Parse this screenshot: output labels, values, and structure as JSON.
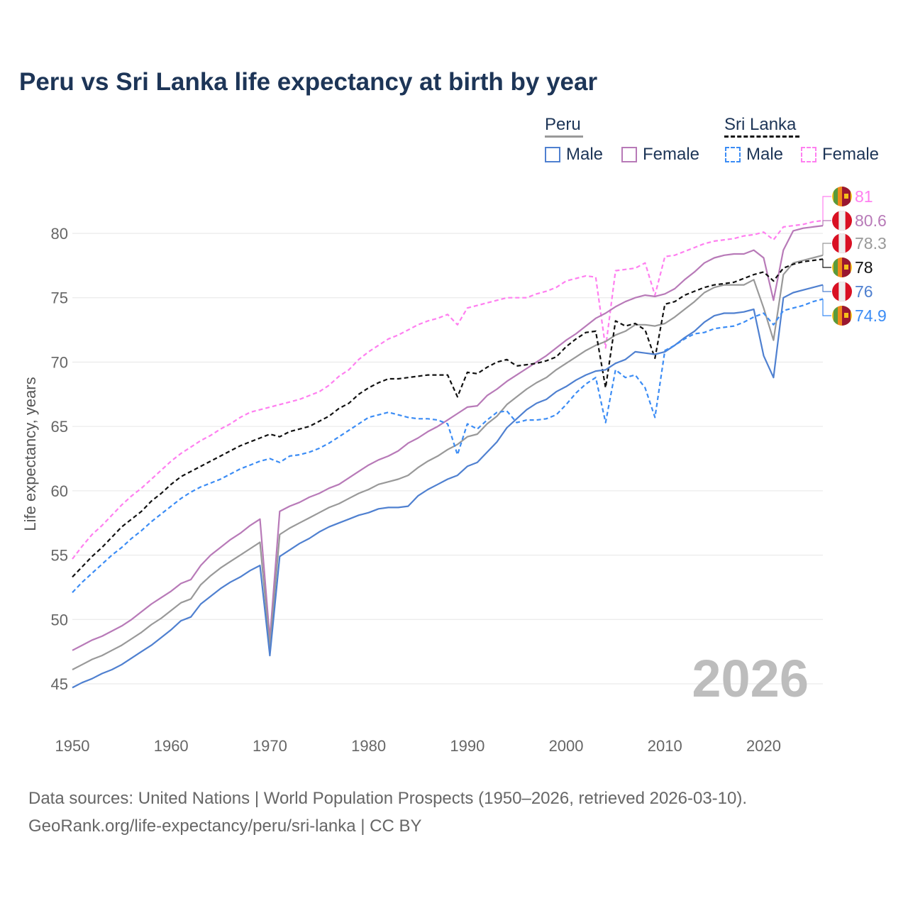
{
  "title": "Peru vs Sri Lanka life expectancy at birth by year",
  "watermark_year": "2026",
  "source_line1": "Data sources: United Nations | World Population Prospects (1950–2026, retrieved 2026-03-10).",
  "source_line2": "GeoRank.org/life-expectancy/peru/sri-lanka | CC BY",
  "legend": {
    "peru": "Peru",
    "sri_lanka": "Sri Lanka",
    "male": "Male",
    "female": "Female"
  },
  "chart_data": {
    "type": "line",
    "title": "Peru vs Sri Lanka life expectancy at birth by year",
    "xlabel": "",
    "ylabel": "Life expectancy, years",
    "xlim": [
      1950,
      2026
    ],
    "ylim": [
      43.5,
      83
    ],
    "xticks": [
      "1950",
      "1960",
      "1970",
      "1980",
      "1990",
      "2000",
      "2010",
      "2020"
    ],
    "yticks": [
      "45",
      "50",
      "55",
      "60",
      "65",
      "70",
      "75",
      "80"
    ],
    "x_start": 1950,
    "series": [
      {
        "name": "Sri Lanka Female",
        "color": "#ff7ff0",
        "dash": true,
        "end_label": "81",
        "flag": "sri-lanka",
        "values": [
          54.7,
          55.7,
          56.6,
          57.3,
          58.1,
          58.9,
          59.6,
          60.2,
          60.9,
          61.6,
          62.3,
          62.9,
          63.4,
          63.9,
          64.3,
          64.8,
          65.2,
          65.7,
          66.1,
          66.3,
          66.5,
          66.7,
          66.9,
          67.1,
          67.4,
          67.7,
          68.2,
          68.9,
          69.4,
          70.2,
          70.8,
          71.3,
          71.8,
          72.1,
          72.5,
          72.9,
          73.2,
          73.4,
          73.7,
          72.9,
          74.2,
          74.4,
          74.6,
          74.8,
          75.0,
          75.0,
          75.0,
          75.3,
          75.5,
          75.8,
          76.3,
          76.5,
          76.7,
          76.6,
          71.1,
          77.1,
          77.2,
          77.3,
          77.7,
          75.2,
          78.2,
          78.3,
          78.6,
          78.9,
          79.2,
          79.4,
          79.5,
          79.6,
          79.8,
          79.9,
          80.1,
          79.5,
          80.5,
          80.6,
          80.7,
          80.9,
          81.0
        ]
      },
      {
        "name": "Peru Female",
        "color": "#b87ab8",
        "dash": false,
        "end_label": "80.6",
        "flag": "peru",
        "values": [
          47.6,
          48.0,
          48.4,
          48.7,
          49.1,
          49.5,
          50.0,
          50.6,
          51.2,
          51.7,
          52.2,
          52.8,
          53.1,
          54.2,
          55.0,
          55.6,
          56.2,
          56.7,
          57.3,
          57.8,
          48.5,
          58.4,
          58.8,
          59.1,
          59.5,
          59.8,
          60.2,
          60.5,
          61.0,
          61.5,
          62.0,
          62.4,
          62.7,
          63.1,
          63.7,
          64.1,
          64.6,
          65.0,
          65.5,
          66.0,
          66.5,
          66.6,
          67.4,
          67.9,
          68.5,
          69.0,
          69.5,
          70.0,
          70.5,
          71.1,
          71.7,
          72.2,
          72.8,
          73.4,
          73.8,
          74.3,
          74.7,
          75.0,
          75.2,
          75.1,
          75.3,
          75.7,
          76.4,
          77.0,
          77.7,
          78.1,
          78.3,
          78.4,
          78.4,
          78.7,
          78.1,
          74.8,
          78.7,
          80.2,
          80.4,
          80.5,
          80.6
        ]
      },
      {
        "name": "Peru",
        "color": "#999999",
        "dash": false,
        "end_label": "78.3",
        "flag": "peru",
        "values": [
          46.1,
          46.5,
          46.9,
          47.2,
          47.6,
          48.0,
          48.5,
          49.0,
          49.6,
          50.1,
          50.7,
          51.3,
          51.6,
          52.7,
          53.4,
          54.0,
          54.5,
          55.0,
          55.5,
          56.0,
          47.8,
          56.6,
          57.1,
          57.5,
          57.9,
          58.3,
          58.7,
          59.0,
          59.4,
          59.8,
          60.1,
          60.5,
          60.7,
          60.9,
          61.2,
          61.8,
          62.3,
          62.7,
          63.2,
          63.6,
          64.2,
          64.4,
          65.2,
          65.8,
          66.7,
          67.3,
          67.9,
          68.4,
          68.8,
          69.4,
          69.9,
          70.4,
          70.9,
          71.3,
          71.6,
          72.1,
          72.4,
          72.9,
          72.9,
          72.8,
          73.0,
          73.5,
          74.1,
          74.7,
          75.4,
          75.8,
          76.0,
          76.0,
          76.0,
          76.4,
          74.2,
          71.7,
          76.8,
          77.7,
          77.9,
          78.1,
          78.3
        ]
      },
      {
        "name": "Sri Lanka",
        "color": "#111111",
        "dash": true,
        "end_label": "78",
        "flag": "sri-lanka",
        "values": [
          53.3,
          54.1,
          54.9,
          55.6,
          56.4,
          57.2,
          57.8,
          58.4,
          59.2,
          59.8,
          60.5,
          61.1,
          61.5,
          61.9,
          62.3,
          62.7,
          63.1,
          63.5,
          63.8,
          64.1,
          64.4,
          64.2,
          64.6,
          64.8,
          65.0,
          65.4,
          65.8,
          66.4,
          66.8,
          67.5,
          68.0,
          68.4,
          68.7,
          68.7,
          68.8,
          68.9,
          69.0,
          69.0,
          69.0,
          67.3,
          69.2,
          69.1,
          69.6,
          70.0,
          70.2,
          69.7,
          69.8,
          69.9,
          70.1,
          70.4,
          71.2,
          71.8,
          72.3,
          72.4,
          68.0,
          73.2,
          72.8,
          73.0,
          72.5,
          70.3,
          74.5,
          74.7,
          75.2,
          75.5,
          75.8,
          76.0,
          76.1,
          76.2,
          76.5,
          76.8,
          77.0,
          76.3,
          77.3,
          77.6,
          77.8,
          77.9,
          78.0
        ]
      },
      {
        "name": "Peru Male",
        "color": "#4f80d0",
        "dash": false,
        "end_label": "76",
        "flag": "peru",
        "values": [
          44.7,
          45.1,
          45.4,
          45.8,
          46.1,
          46.5,
          47.0,
          47.5,
          48.0,
          48.6,
          49.2,
          49.9,
          50.2,
          51.2,
          51.8,
          52.4,
          52.9,
          53.3,
          53.8,
          54.2,
          47.2,
          54.9,
          55.4,
          55.9,
          56.3,
          56.8,
          57.2,
          57.5,
          57.8,
          58.1,
          58.3,
          58.6,
          58.7,
          58.7,
          58.8,
          59.6,
          60.1,
          60.5,
          60.9,
          61.2,
          61.9,
          62.2,
          63.0,
          63.8,
          64.9,
          65.6,
          66.3,
          66.8,
          67.1,
          67.7,
          68.1,
          68.6,
          69.0,
          69.3,
          69.4,
          69.9,
          70.2,
          70.8,
          70.7,
          70.6,
          70.8,
          71.3,
          71.9,
          72.4,
          73.1,
          73.6,
          73.8,
          73.8,
          73.9,
          74.1,
          70.5,
          68.8,
          75.0,
          75.4,
          75.6,
          75.8,
          76.0
        ]
      },
      {
        "name": "Sri Lanka Male",
        "color": "#3b8cf5",
        "dash": true,
        "end_label": "74.9",
        "flag": "sri-lanka",
        "values": [
          52.1,
          52.9,
          53.6,
          54.3,
          55.0,
          55.6,
          56.3,
          56.9,
          57.6,
          58.2,
          58.8,
          59.4,
          59.9,
          60.3,
          60.6,
          60.9,
          61.3,
          61.7,
          62.0,
          62.3,
          62.5,
          62.2,
          62.7,
          62.8,
          63.0,
          63.3,
          63.7,
          64.2,
          64.7,
          65.2,
          65.7,
          65.9,
          66.1,
          65.9,
          65.7,
          65.6,
          65.6,
          65.5,
          65.2,
          62.8,
          65.2,
          64.8,
          65.5,
          66.1,
          66.2,
          65.3,
          65.5,
          65.5,
          65.6,
          65.9,
          66.7,
          67.6,
          68.3,
          68.8,
          65.3,
          69.4,
          68.8,
          69.0,
          68.0,
          65.7,
          70.9,
          71.3,
          71.8,
          72.2,
          72.3,
          72.6,
          72.7,
          72.8,
          73.1,
          73.5,
          73.8,
          72.9,
          74.0,
          74.2,
          74.4,
          74.7,
          74.9
        ]
      }
    ]
  }
}
